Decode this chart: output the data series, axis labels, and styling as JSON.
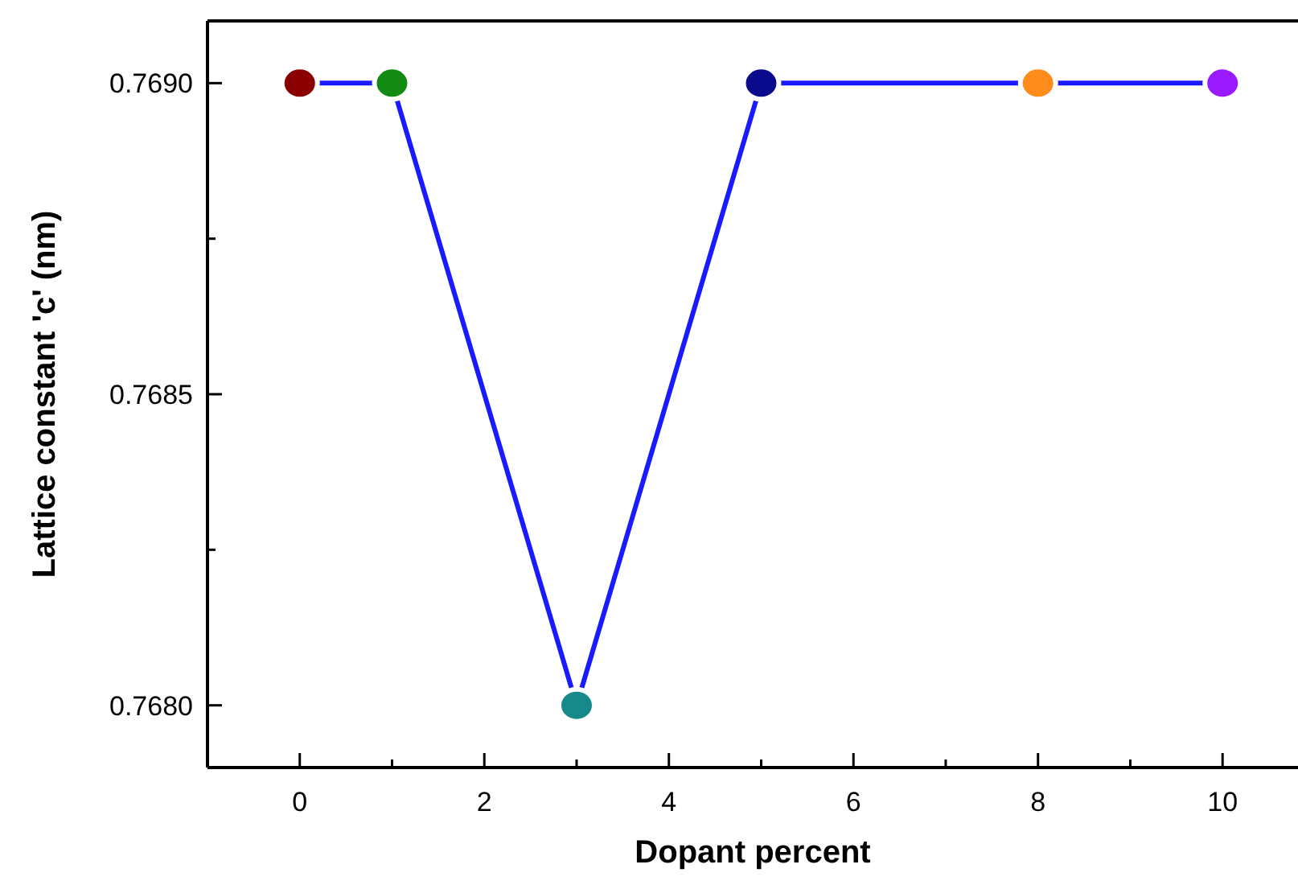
{
  "chart_data": {
    "type": "line",
    "xlabel": "Dopant percent",
    "ylabel": "Lattice constant 'c' (nm)",
    "x": [
      0,
      1,
      3,
      5,
      8,
      10
    ],
    "series": [
      {
        "color": "#1a1aff",
        "colors": [
          "#8b0000",
          "#138a13",
          "#168a8a",
          "#0a0a8c",
          "#ff8c1a",
          "#9a1aff"
        ],
        "values": [
          0.769,
          0.769,
          0.768,
          0.769,
          0.769,
          0.769
        ]
      }
    ],
    "xlim": [
      -1,
      10.8
    ],
    "ylim": [
      0.7679,
      0.7691
    ],
    "xticks": [
      0,
      {
        "value": 1,
        "label": null
      },
      2,
      {
        "value": 3,
        "label": null
      },
      4,
      {
        "value": 5,
        "label": null
      },
      6,
      {
        "value": 7,
        "label": null
      },
      8,
      {
        "value": 9,
        "label": null
      },
      10
    ],
    "yticks": [
      {
        "value": 0.768,
        "label": "0.7680"
      },
      {
        "value": 0.76825,
        "label": null
      },
      {
        "value": 0.7685,
        "label": "0.7685"
      },
      {
        "value": 0.76875,
        "label": null
      },
      {
        "value": 0.769,
        "label": "0.7690"
      }
    ],
    "marker": "circle",
    "line_style": "solid",
    "grid": false
  }
}
